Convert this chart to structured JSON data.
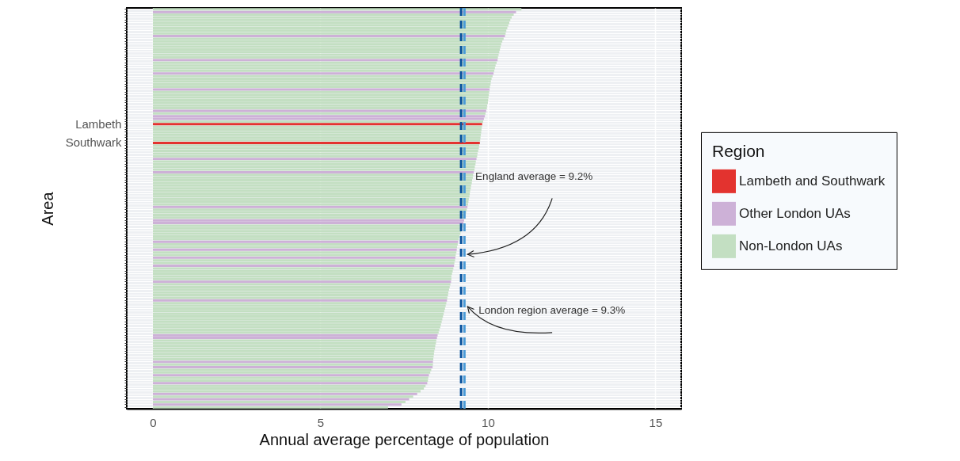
{
  "chart_data": {
    "type": "bar",
    "orientation": "horizontal",
    "xlabel": "Annual average percentage of population",
    "ylabel": "Area",
    "legend_title": "Region",
    "legend": "right",
    "grid": true,
    "categories": [
      null,
      null,
      null,
      null,
      null,
      null,
      null,
      null,
      null,
      null,
      null,
      null,
      null,
      null,
      null,
      null,
      null,
      null,
      null,
      null,
      null,
      null,
      null,
      null,
      null,
      null,
      null,
      null,
      null,
      null,
      null,
      null,
      null,
      null,
      null,
      null,
      null,
      null,
      null,
      null,
      null,
      null,
      null,
      "Lambeth",
      null,
      null,
      null,
      null,
      null,
      null,
      "Southwark",
      null,
      null,
      null,
      null,
      null,
      null,
      null,
      null,
      null,
      null,
      null,
      null,
      null,
      null,
      null,
      null,
      null,
      null,
      null,
      null,
      null,
      null,
      null,
      null,
      null,
      null,
      null,
      null,
      null,
      null,
      null,
      null,
      null,
      null,
      null,
      null,
      null,
      null,
      null,
      null,
      null,
      null,
      null,
      null,
      null,
      null,
      null,
      null,
      null,
      null,
      null,
      null,
      null,
      null,
      null,
      null,
      null,
      null,
      null,
      null,
      null,
      null,
      null,
      null,
      null,
      null,
      null,
      null,
      null,
      null,
      null,
      null,
      null,
      null,
      null,
      null,
      null,
      null,
      null,
      null,
      null,
      null,
      null,
      null,
      null,
      null,
      null,
      null,
      null,
      null,
      null,
      null,
      null,
      null,
      null,
      null,
      null,
      null,
      null
    ],
    "xlim": [
      -0.78,
      15.77
    ],
    "xticks": [
      0,
      5,
      10,
      15
    ],
    "series": [
      {
        "name": "Lambeth and Southwark",
        "color": "#e3332f",
        "values": [
          null,
          null,
          null,
          null,
          null,
          null,
          null,
          null,
          null,
          null,
          null,
          null,
          null,
          null,
          null,
          null,
          null,
          null,
          null,
          null,
          null,
          null,
          null,
          null,
          null,
          null,
          null,
          null,
          null,
          null,
          null,
          null,
          null,
          null,
          null,
          null,
          null,
          null,
          null,
          null,
          null,
          null,
          null,
          9.83,
          null,
          null,
          null,
          null,
          null,
          null,
          9.76,
          null,
          null,
          null,
          null,
          null,
          null,
          null,
          null,
          null,
          null,
          null,
          null,
          null,
          null,
          null,
          null,
          null,
          null,
          null,
          null,
          null,
          null,
          null,
          null,
          null,
          null,
          null,
          null,
          null,
          null,
          null,
          null,
          null,
          null,
          null,
          null,
          null,
          null,
          null,
          null,
          null,
          null,
          null,
          null,
          null,
          null,
          null,
          null,
          null,
          null,
          null,
          null,
          null,
          null,
          null,
          null,
          null,
          null,
          null,
          null,
          null,
          null,
          null,
          null,
          null,
          null,
          null,
          null,
          null,
          null,
          null,
          null,
          null,
          null,
          null,
          null,
          null,
          null,
          null,
          null,
          null,
          null,
          null,
          null,
          null,
          null,
          null,
          null,
          null,
          null,
          null,
          null,
          null,
          null,
          null,
          null,
          null,
          null,
          null
        ]
      },
      {
        "name": "Other London UAs",
        "color": "#cdb1d7",
        "values": [
          null,
          10.84,
          null,
          null,
          null,
          null,
          null,
          null,
          null,
          null,
          10.51,
          null,
          null,
          null,
          null,
          null,
          null,
          null,
          null,
          10.29,
          null,
          null,
          null,
          null,
          10.17,
          null,
          null,
          null,
          null,
          null,
          10.05,
          null,
          null,
          null,
          null,
          null,
          null,
          null,
          9.95,
          null,
          9.91,
          9.88,
          null,
          null,
          null,
          null,
          null,
          null,
          null,
          null,
          null,
          null,
          null,
          null,
          null,
          null,
          9.66,
          null,
          null,
          null,
          null,
          9.58,
          null,
          null,
          null,
          null,
          null,
          null,
          null,
          null,
          null,
          null,
          null,
          null,
          9.39,
          null,
          null,
          null,
          null,
          9.29,
          9.27,
          null,
          null,
          null,
          null,
          null,
          null,
          9.11,
          null,
          null,
          9.07,
          null,
          null,
          9.03,
          null,
          null,
          8.99,
          null,
          null,
          null,
          null,
          null,
          8.9,
          null,
          null,
          null,
          null,
          null,
          null,
          8.78,
          null,
          null,
          null,
          null,
          null,
          null,
          null,
          null,
          null,
          null,
          null,
          null,
          8.5,
          8.48,
          null,
          null,
          null,
          null,
          null,
          null,
          null,
          null,
          8.36,
          null,
          8.35,
          null,
          null,
          8.24,
          null,
          null,
          8.19,
          null,
          null,
          null,
          7.89,
          null,
          7.65,
          null,
          7.42,
          null
        ]
      },
      {
        "name": "Non-London UAs",
        "color": "#c3dfc2",
        "values": [
          11.0,
          null,
          10.77,
          10.71,
          10.67,
          10.64,
          10.61,
          10.58,
          10.55,
          10.53,
          null,
          10.47,
          10.43,
          10.4,
          10.38,
          10.36,
          10.34,
          10.32,
          10.3,
          null,
          10.26,
          10.23,
          10.21,
          10.19,
          null,
          10.14,
          10.11,
          10.09,
          10.08,
          10.06,
          null,
          10.04,
          10.03,
          10.02,
          10.01,
          10.0,
          9.98,
          9.97,
          null,
          9.93,
          null,
          null,
          9.86,
          null,
          9.82,
          9.81,
          9.8,
          9.79,
          9.78,
          9.77,
          null,
          9.74,
          9.73,
          9.71,
          9.69,
          9.68,
          null,
          9.64,
          9.63,
          9.61,
          9.6,
          null,
          9.56,
          9.55,
          9.53,
          9.52,
          9.5,
          9.49,
          9.47,
          9.46,
          9.45,
          9.43,
          9.42,
          9.41,
          null,
          9.37,
          9.35,
          9.33,
          9.31,
          null,
          null,
          9.25,
          9.22,
          9.2,
          9.18,
          9.15,
          9.13,
          null,
          9.1,
          9.08,
          null,
          9.06,
          9.04,
          null,
          9.02,
          9.0,
          null,
          8.97,
          8.95,
          8.93,
          8.91,
          8.91,
          null,
          8.88,
          8.86,
          8.84,
          8.82,
          8.81,
          8.79,
          null,
          8.76,
          8.74,
          8.72,
          8.7,
          8.68,
          8.66,
          8.64,
          8.62,
          8.6,
          8.58,
          8.55,
          8.53,
          null,
          null,
          8.46,
          8.45,
          8.43,
          8.42,
          8.4,
          8.39,
          8.38,
          8.37,
          null,
          8.36,
          null,
          8.31,
          8.28,
          null,
          8.22,
          8.21,
          null,
          8.14,
          8.09,
          7.99,
          null,
          7.77,
          null,
          7.54,
          null,
          7.02
        ]
      }
    ],
    "ref_lines": [
      {
        "axis": "x",
        "value": 9.2,
        "label": "England average = 9.2%",
        "color": "#08519c",
        "line_style": "dashed"
      },
      {
        "axis": "x",
        "value": 9.3,
        "label": "London region average = 9.3%",
        "color": "#4a9ad6",
        "line_style": "dashed"
      }
    ]
  }
}
